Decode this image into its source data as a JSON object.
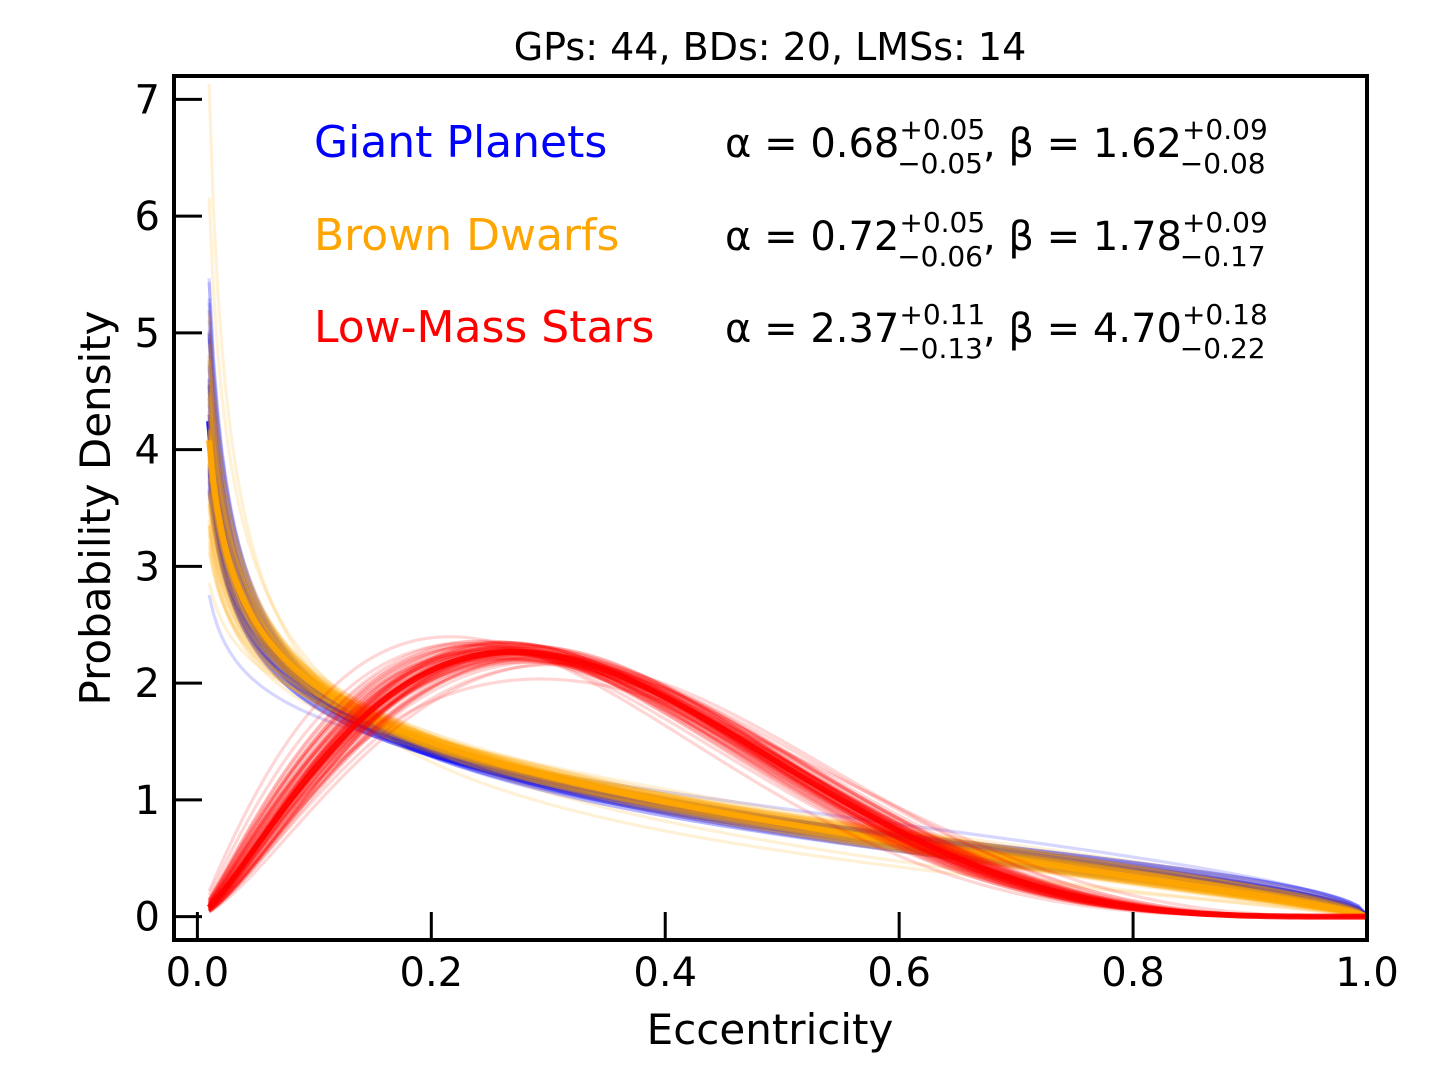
{
  "chart_data": {
    "type": "line",
    "title": "GPs: 44, BDs: 20, LMSs: 14",
    "xlabel": "Eccentricity",
    "ylabel": "Probability Density",
    "xlim": [
      -0.02,
      1.0
    ],
    "ylim": [
      -0.2,
      7.2
    ],
    "xticks": [
      0.0,
      0.2,
      0.4,
      0.6,
      0.8,
      1.0
    ],
    "xtick_labels": [
      "0.0",
      "0.2",
      "0.4",
      "0.6",
      "0.8",
      "1.0"
    ],
    "yticks": [
      0,
      1,
      2,
      3,
      4,
      5,
      6,
      7
    ],
    "ytick_labels": [
      "0",
      "1",
      "2",
      "3",
      "4",
      "5",
      "6",
      "7"
    ],
    "x_range": [
      0.01,
      1.0
    ],
    "legend_position": "top",
    "series": [
      {
        "name": "Giant Planets",
        "color": "#0000ff",
        "distribution": "beta",
        "alpha": 0.68,
        "alpha_plus": "+0.05",
        "alpha_minus": "−0.05",
        "beta": 1.62,
        "beta_plus": "+0.09",
        "beta_minus": "−0.08",
        "alpha_text": "α = 0.68",
        "beta_text": "β = 1.62",
        "n_samples": 44
      },
      {
        "name": "Brown Dwarfs",
        "color": "#ffa500",
        "distribution": "beta",
        "alpha": 0.72,
        "alpha_plus": "+0.05",
        "alpha_minus": "−0.06",
        "beta": 1.78,
        "beta_plus": "+0.09",
        "beta_minus": "−0.17",
        "alpha_text": "α = 0.72",
        "beta_text": "β = 1.78",
        "n_samples": 20
      },
      {
        "name": "Low-Mass Stars",
        "color": "#ff0000",
        "distribution": "beta",
        "alpha": 2.37,
        "alpha_plus": "+0.11",
        "alpha_minus": "−0.13",
        "beta": 4.7,
        "beta_plus": "+0.18",
        "beta_minus": "−0.22",
        "alpha_text": "α = 2.37",
        "beta_text": "β = 4.70",
        "n_samples": 14
      }
    ]
  }
}
